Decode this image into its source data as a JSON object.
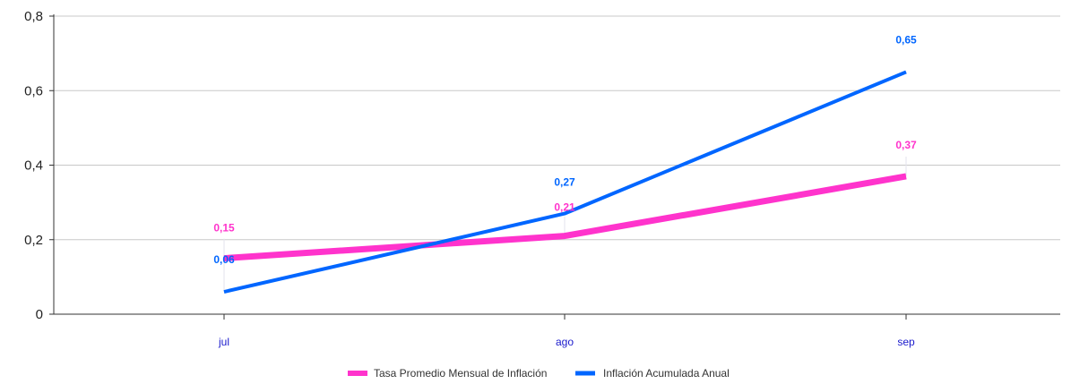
{
  "chart_data": {
    "type": "line",
    "categories": [
      "jul",
      "ago",
      "sep"
    ],
    "series": [
      {
        "name": "Tasa Promedio Mensual de Inflación",
        "values": [
          0.15,
          0.21,
          0.37
        ],
        "labels": [
          "0,15",
          "0,21",
          "0,37"
        ],
        "color": "#ff33cc"
      },
      {
        "name": "Inflación Acumulada Anual",
        "values": [
          0.06,
          0.27,
          0.65
        ],
        "labels": [
          "0,06",
          "0,27",
          "0,65"
        ],
        "color": "#0066ff"
      }
    ],
    "ylim": [
      0,
      0.8
    ],
    "yticks": [
      0,
      0.2,
      0.4,
      0.6,
      0.8
    ],
    "ytick_labels": [
      "0",
      "0,2",
      "0,4",
      "0,6",
      "0,8"
    ],
    "grid": true,
    "legend": "bottom"
  }
}
